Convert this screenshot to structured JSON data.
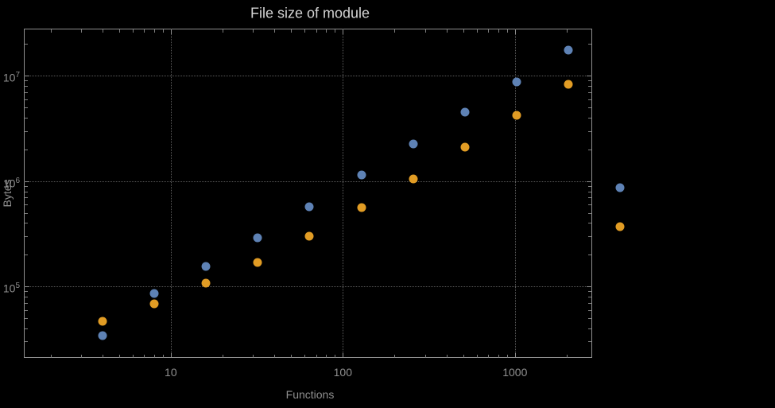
{
  "chart_data": {
    "type": "scatter",
    "title": "File size of module",
    "xlabel": "Functions",
    "ylabel": "Bytes",
    "x_scale": "log",
    "y_scale": "log",
    "grid": "dotted lines at decade ticks",
    "legend": "none",
    "x_range": [
      1.4,
      2812
    ],
    "y_range": [
      21000,
      28000000
    ],
    "x_ticks": [
      10,
      100,
      1000
    ],
    "x_tick_labels": [
      "10",
      "100",
      "1000"
    ],
    "y_ticks": [
      100000,
      1000000,
      10000000
    ],
    "y_tick_labels": [
      "10^5",
      "10^6",
      "10^7"
    ],
    "series": [
      {
        "name": "blue",
        "color": "#5e82b5",
        "points": [
          [
            4,
            34000
          ],
          [
            8,
            86000
          ],
          [
            16,
            155000
          ],
          [
            32,
            290000
          ],
          [
            64,
            570000
          ],
          [
            128,
            1150000
          ],
          [
            256,
            2250000
          ],
          [
            512,
            4500000
          ],
          [
            1024,
            8800000
          ],
          [
            2048,
            17500000
          ],
          [
            4096,
            870000
          ]
        ]
      },
      {
        "name": "orange",
        "color": "#e19c24",
        "points": [
          [
            4,
            47000
          ],
          [
            8,
            68000
          ],
          [
            16,
            107000
          ],
          [
            32,
            170000
          ],
          [
            64,
            300000
          ],
          [
            128,
            560000
          ],
          [
            256,
            1050000
          ],
          [
            512,
            2100000
          ],
          [
            1024,
            4200000
          ],
          [
            2048,
            8300000
          ],
          [
            4096,
            370000
          ]
        ]
      }
    ]
  },
  "colors": {
    "background": "#000000",
    "frame": "#8f8f8f",
    "gridline": "#5c5c5c",
    "tick_text": "#8f8f8f",
    "title_text": "#d2d2d2",
    "series_blue": "#5e82b5",
    "series_orange": "#e19c24"
  }
}
